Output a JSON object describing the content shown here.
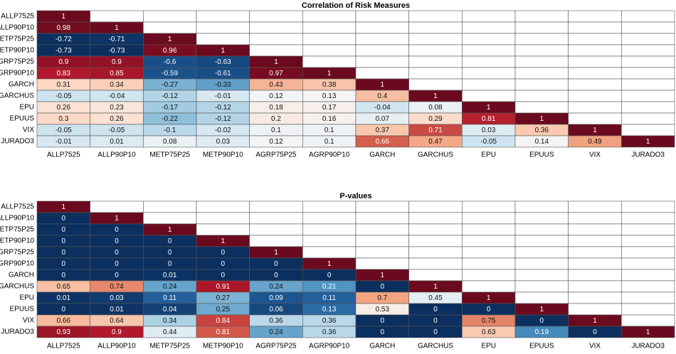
{
  "chart_data": [
    {
      "type": "heatmap",
      "title": "Correlation of Risk Measures",
      "categories": [
        "ALLP7525",
        "ALLP90P10",
        "METP75P25",
        "METP90P10",
        "AGRP75P25",
        "AGRP90P10",
        "GARCH",
        "GARCHUS",
        "EPU",
        "EPUUS",
        "VIX",
        "JURADO3"
      ],
      "clim": [
        -0.73,
        1
      ],
      "colormap": [
        "#0b2f5e",
        "#1e5a97",
        "#4a8fc0",
        "#93c3dd",
        "#d2e6f1",
        "#f5f5f5",
        "#fcd9c6",
        "#f3a582",
        "#d6604d",
        "#b2182b",
        "#6b0a1e"
      ],
      "values": [
        [
          1,
          null,
          null,
          null,
          null,
          null,
          null,
          null,
          null,
          null,
          null,
          null
        ],
        [
          0.98,
          1,
          null,
          null,
          null,
          null,
          null,
          null,
          null,
          null,
          null,
          null
        ],
        [
          -0.72,
          -0.71,
          1,
          null,
          null,
          null,
          null,
          null,
          null,
          null,
          null,
          null
        ],
        [
          -0.73,
          -0.73,
          0.96,
          1,
          null,
          null,
          null,
          null,
          null,
          null,
          null,
          null
        ],
        [
          0.9,
          0.9,
          -0.6,
          -0.63,
          1,
          null,
          null,
          null,
          null,
          null,
          null,
          null
        ],
        [
          0.83,
          0.85,
          -0.59,
          -0.61,
          0.97,
          1,
          null,
          null,
          null,
          null,
          null,
          null
        ],
        [
          0.31,
          0.34,
          -0.27,
          -0.33,
          0.43,
          0.38,
          1,
          null,
          null,
          null,
          null,
          null
        ],
        [
          -0.05,
          -0.04,
          -0.12,
          -0.01,
          0.12,
          0.13,
          0.4,
          1,
          null,
          null,
          null,
          null
        ],
        [
          0.26,
          0.23,
          -0.17,
          -0.12,
          0.18,
          0.17,
          -0.04,
          0.08,
          1,
          null,
          null,
          null
        ],
        [
          0.3,
          0.26,
          -0.22,
          -0.12,
          0.2,
          0.16,
          0.07,
          0.29,
          0.81,
          1,
          null,
          null
        ],
        [
          -0.05,
          -0.05,
          -0.1,
          -0.02,
          0.1,
          0.1,
          0.37,
          0.71,
          0.03,
          0.36,
          1,
          null
        ],
        [
          -0.01,
          0.01,
          0.08,
          0.03,
          0.12,
          0.1,
          0.66,
          0.47,
          -0.05,
          0.14,
          0.49,
          1
        ]
      ]
    },
    {
      "type": "heatmap",
      "title": "P-values",
      "categories": [
        "ALLP7525",
        "ALLP90P10",
        "METP75P25",
        "METP90P10",
        "AGRP75P25",
        "AGRP90P10",
        "GARCH",
        "GARCHUS",
        "EPU",
        "EPUUS",
        "VIX",
        "JURADO3"
      ],
      "clim": [
        0,
        1
      ],
      "colormap": [
        "#0b2f5e",
        "#1e5a97",
        "#4a8fc0",
        "#93c3dd",
        "#d2e6f1",
        "#f5f5f5",
        "#fcd9c6",
        "#f3a582",
        "#d6604d",
        "#b2182b",
        "#6b0a1e"
      ],
      "values": [
        [
          1,
          null,
          null,
          null,
          null,
          null,
          null,
          null,
          null,
          null,
          null,
          null
        ],
        [
          0,
          1,
          null,
          null,
          null,
          null,
          null,
          null,
          null,
          null,
          null,
          null
        ],
        [
          0,
          0,
          1,
          null,
          null,
          null,
          null,
          null,
          null,
          null,
          null,
          null
        ],
        [
          0,
          0,
          0,
          1,
          null,
          null,
          null,
          null,
          null,
          null,
          null,
          null
        ],
        [
          0,
          0,
          0,
          0,
          1,
          null,
          null,
          null,
          null,
          null,
          null,
          null
        ],
        [
          0,
          0,
          0,
          0,
          0,
          1,
          null,
          null,
          null,
          null,
          null,
          null
        ],
        [
          0,
          0,
          0.01,
          0,
          0,
          0,
          1,
          null,
          null,
          null,
          null,
          null
        ],
        [
          0.65,
          0.74,
          0.24,
          0.91,
          0.24,
          0.21,
          0,
          1,
          null,
          null,
          null,
          null
        ],
        [
          0.01,
          0.03,
          0.11,
          0.27,
          0.09,
          0.11,
          0.7,
          0.45,
          1,
          null,
          null,
          null
        ],
        [
          0,
          0.01,
          0.04,
          0.25,
          0.06,
          0.13,
          0.53,
          0,
          0,
          1,
          null,
          null
        ],
        [
          0.66,
          0.64,
          0.34,
          0.84,
          0.36,
          0.36,
          0,
          0,
          0.75,
          0,
          1,
          null
        ],
        [
          0.93,
          0.9,
          0.44,
          0.81,
          0.24,
          0.36,
          0,
          0,
          0.63,
          0.19,
          0,
          1
        ]
      ]
    }
  ]
}
